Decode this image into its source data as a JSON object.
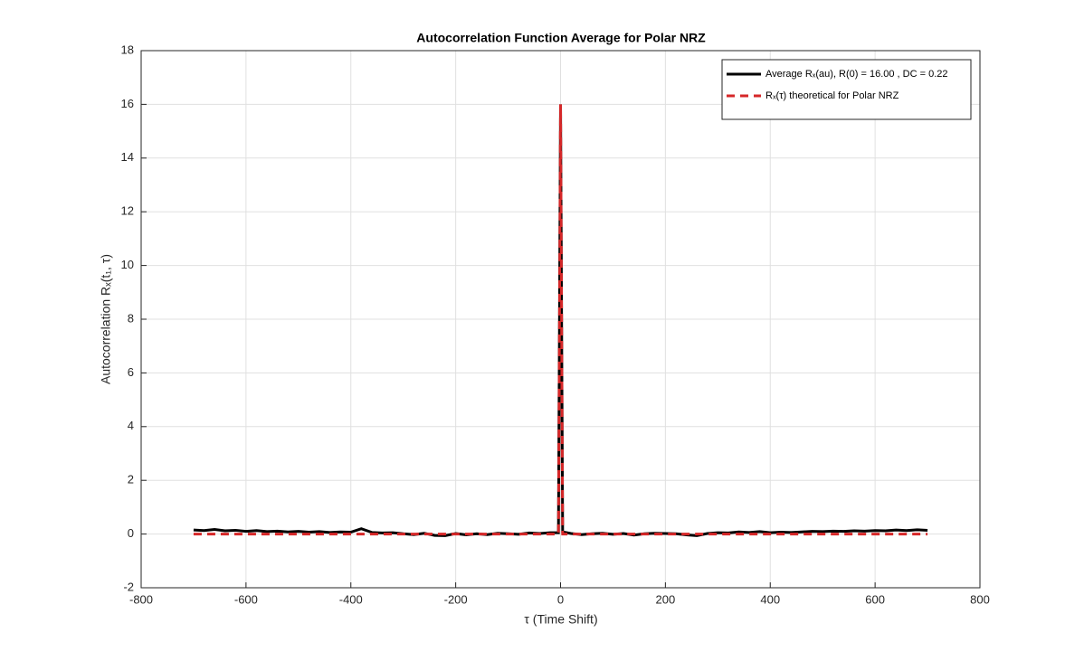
{
  "chart_data": {
    "type": "line",
    "title": "Autocorrelation Function Average for Polar NRZ",
    "xlabel": "τ (Time Shift)",
    "ylabel": "Autocorrelation Rₓ(t₁, τ)",
    "xlim": [
      -800,
      800
    ],
    "xticks": [
      -800,
      -600,
      -400,
      -200,
      0,
      200,
      400,
      600,
      800
    ],
    "ylim": [
      -2,
      18
    ],
    "yticks": [
      -2,
      0,
      2,
      4,
      6,
      8,
      10,
      12,
      14,
      16,
      18
    ],
    "grid": true,
    "legend": "northeast",
    "series": [
      {
        "name": "Average Rₓ(au), R(0) = 16.00 , DC = 0.22",
        "color": "#000000",
        "dash": "solid",
        "x": [
          -700,
          -680,
          -660,
          -640,
          -620,
          -600,
          -580,
          -560,
          -540,
          -520,
          -500,
          -480,
          -460,
          -440,
          -420,
          -400,
          -380,
          -360,
          -340,
          -320,
          -300,
          -280,
          -260,
          -240,
          -220,
          -200,
          -180,
          -160,
          -140,
          -120,
          -100,
          -80,
          -60,
          -40,
          -20,
          -4,
          0,
          4,
          20,
          40,
          60,
          80,
          100,
          120,
          140,
          160,
          180,
          200,
          220,
          240,
          260,
          280,
          300,
          320,
          340,
          360,
          380,
          400,
          420,
          440,
          460,
          480,
          500,
          520,
          540,
          560,
          580,
          600,
          620,
          640,
          660,
          680,
          700
        ],
        "values": [
          0.15,
          0.13,
          0.17,
          0.12,
          0.14,
          0.1,
          0.13,
          0.09,
          0.11,
          0.08,
          0.1,
          0.07,
          0.09,
          0.06,
          0.08,
          0.07,
          0.2,
          0.06,
          0.04,
          0.05,
          0.01,
          -0.02,
          0.03,
          -0.05,
          -0.06,
          0.02,
          -0.03,
          0.01,
          -0.02,
          0.03,
          0.01,
          -0.01,
          0.04,
          0.02,
          0.05,
          0.05,
          16,
          0.08,
          0.02,
          -0.02,
          0.01,
          0.03,
          -0.01,
          0.02,
          -0.04,
          0.01,
          0.03,
          0.02,
          0.01,
          -0.03,
          -0.06,
          0.02,
          0.05,
          0.04,
          0.08,
          0.06,
          0.09,
          0.05,
          0.07,
          0.06,
          0.08,
          0.1,
          0.09,
          0.11,
          0.1,
          0.12,
          0.11,
          0.13,
          0.12,
          0.15,
          0.13,
          0.16,
          0.14
        ]
      },
      {
        "name": "Rₓ(τ) theoretical for Polar NRZ",
        "color": "#d62728",
        "dash": "dashed",
        "x": [
          -700,
          -4,
          0,
          4,
          700
        ],
        "values": [
          0,
          0,
          16,
          0,
          0
        ]
      }
    ]
  }
}
